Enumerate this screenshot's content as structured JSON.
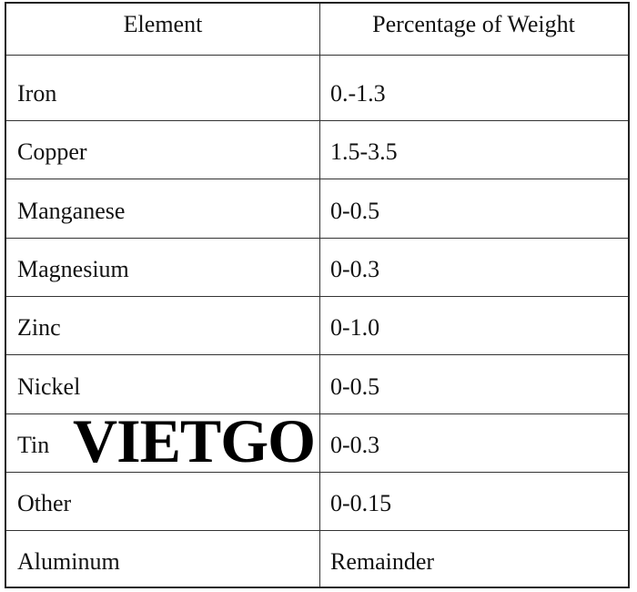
{
  "table": {
    "header": [
      "Element",
      "Percentage of Weight"
    ],
    "rows": [
      [
        "Iron",
        "0.-1.3"
      ],
      [
        "Copper",
        "1.5-3.5"
      ],
      [
        "Manganese",
        "0-0.5"
      ],
      [
        "Magnesium",
        "0-0.3"
      ],
      [
        "Zinc",
        "0-1.0"
      ],
      [
        "Nickel",
        "0-0.5"
      ],
      [
        "Tin",
        "0-0.3"
      ],
      [
        "Other",
        "0-0.15"
      ],
      [
        "Aluminum",
        "Remainder"
      ]
    ]
  },
  "watermark": "VIETGO"
}
